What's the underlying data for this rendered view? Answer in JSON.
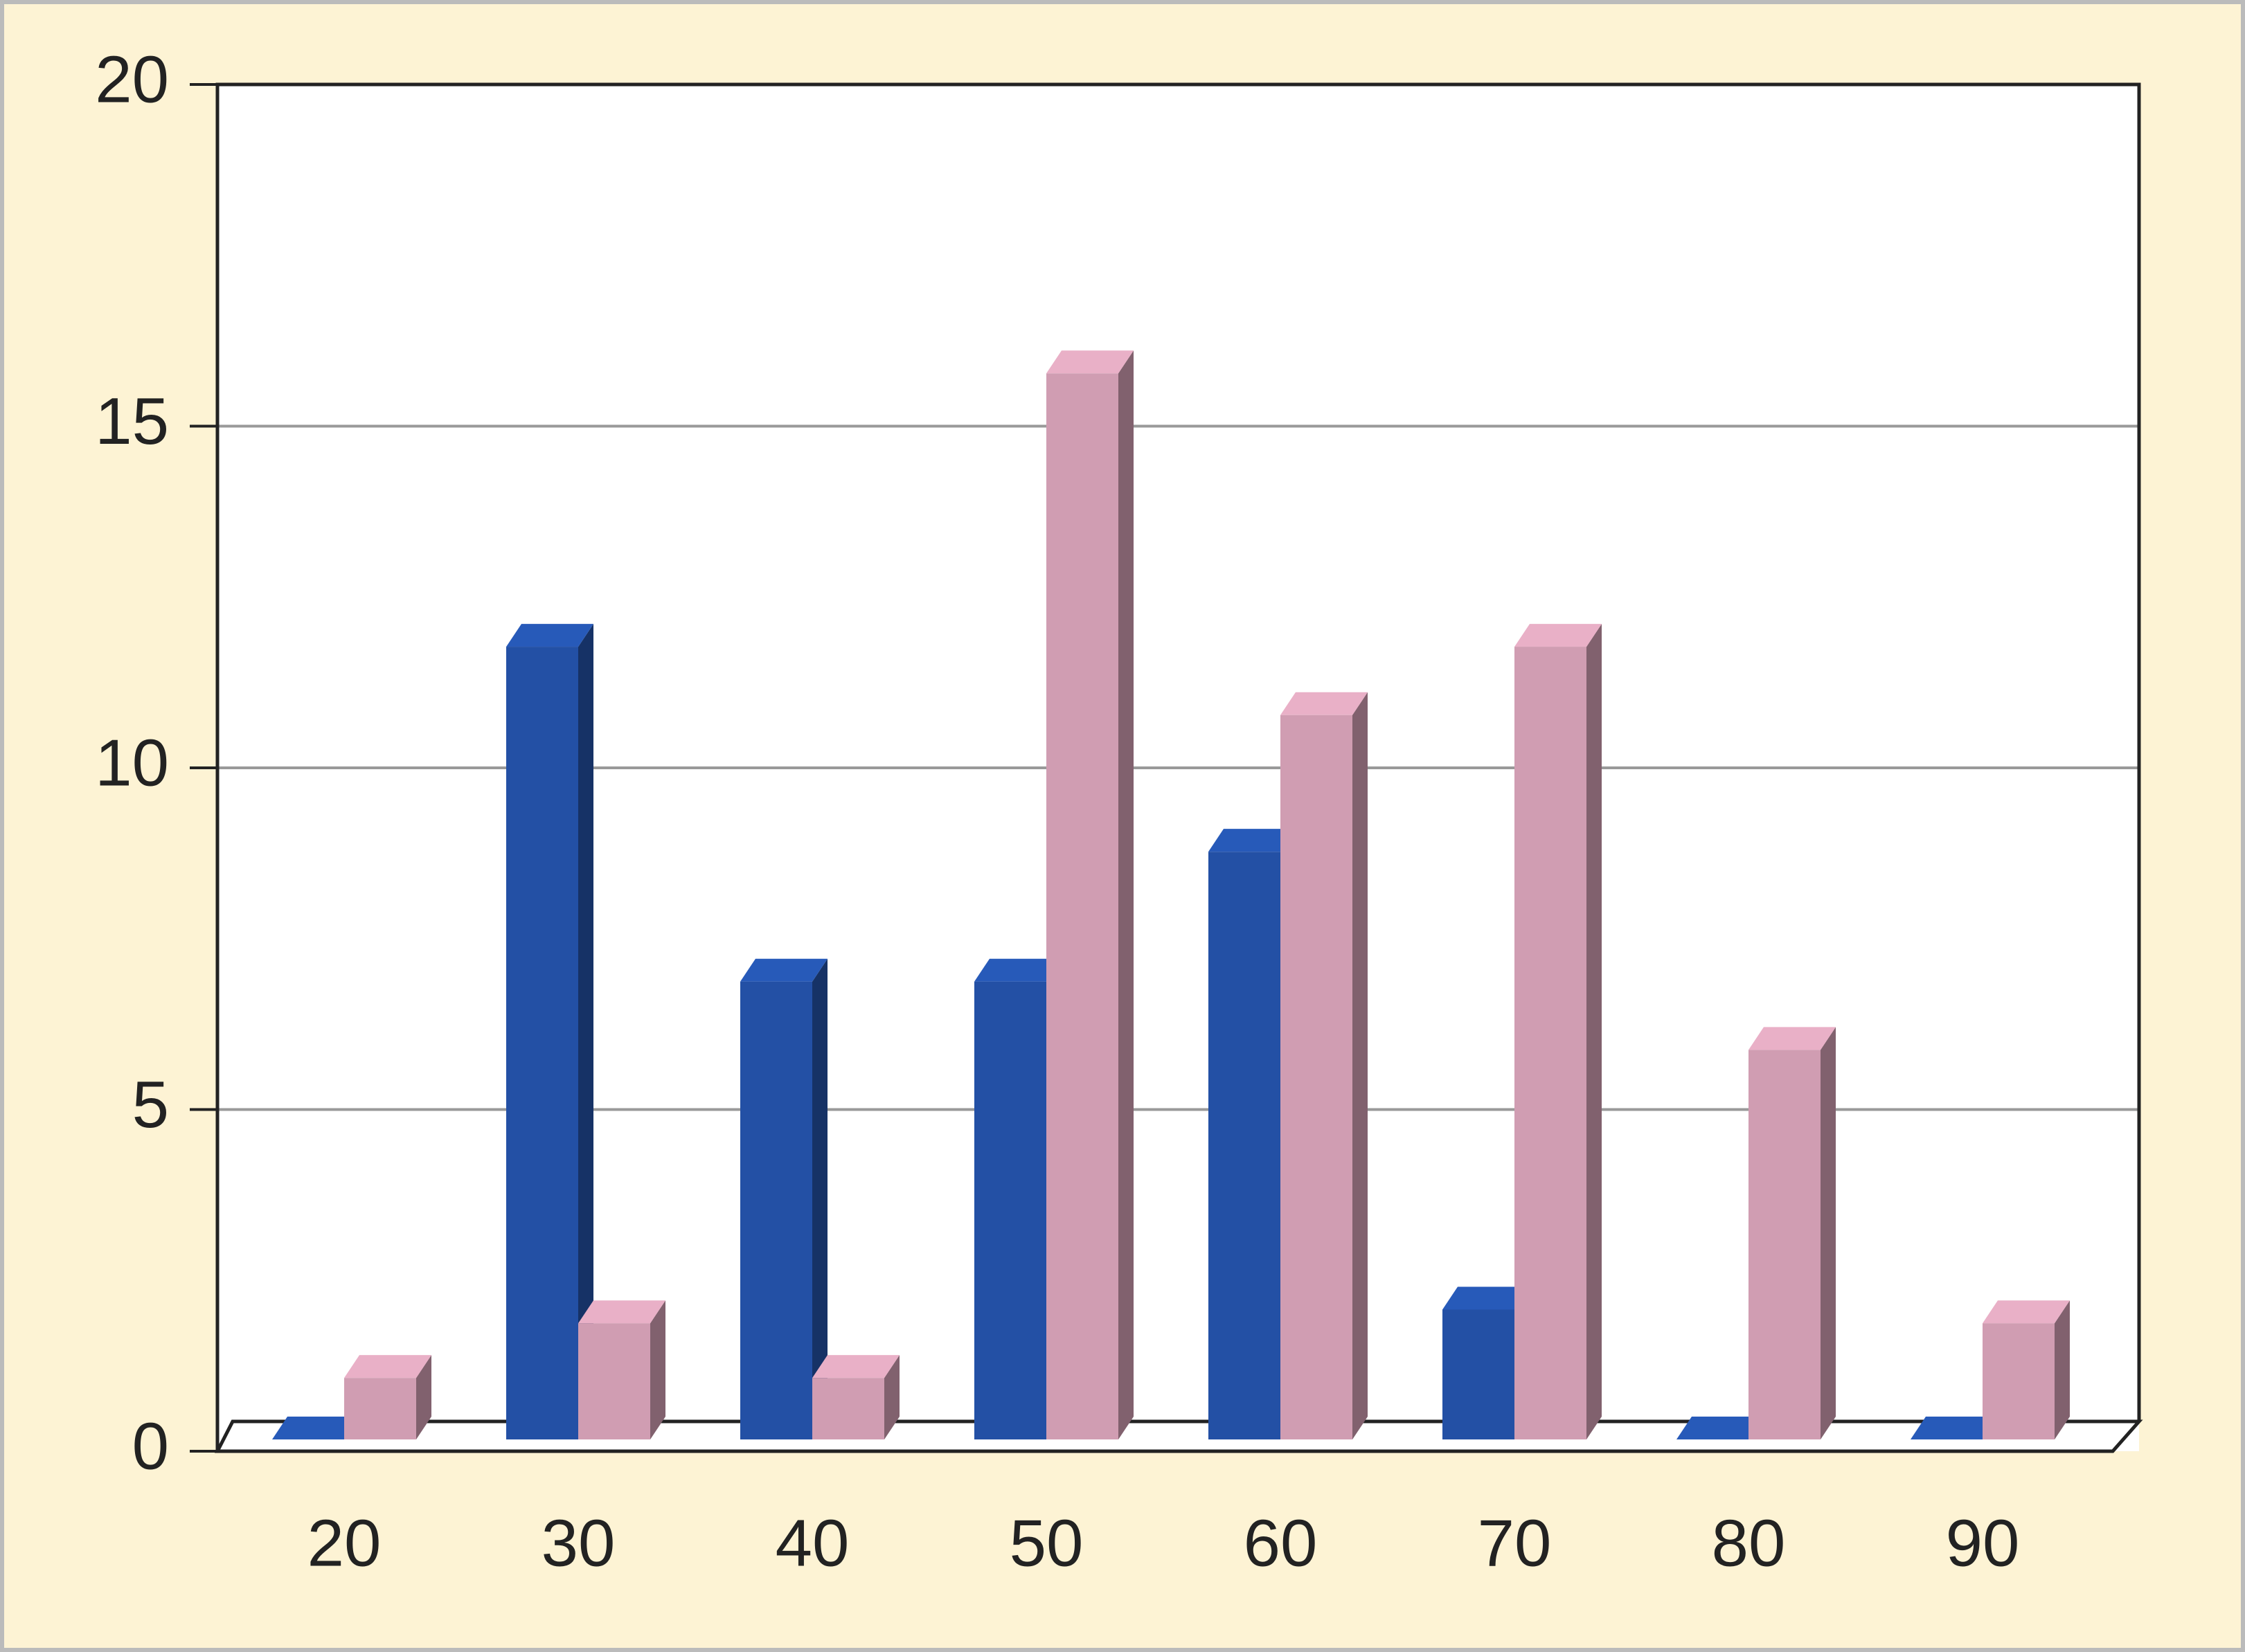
{
  "chart_data": {
    "type": "bar3d",
    "categories": [
      "20",
      "30",
      "40",
      "50",
      "60",
      "70",
      "80",
      "90"
    ],
    "series": [
      {
        "color": "#2350a5",
        "values": [
          0,
          11.6,
          6.7,
          6.7,
          8.6,
          1.9,
          0,
          0
        ]
      },
      {
        "color": "#d09db2",
        "values": [
          0.9,
          1.7,
          0.9,
          15.6,
          10.6,
          11.6,
          5.7,
          1.7
        ]
      }
    ],
    "ylim": [
      0,
      20
    ],
    "yticks": [
      0,
      5,
      10,
      15,
      20
    ],
    "grid": true
  }
}
